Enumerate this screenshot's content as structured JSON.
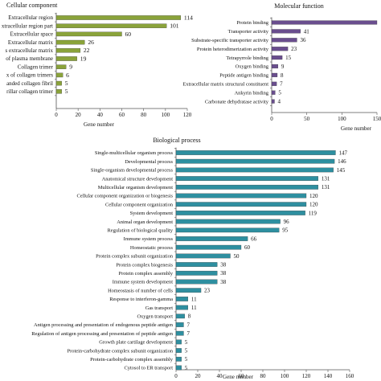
{
  "chart_data": [
    {
      "type": "bar",
      "orientation": "horizontal",
      "title": "Cellular component",
      "xlabel": "Gene number",
      "xlim": [
        0,
        120
      ],
      "xticks": [
        "0",
        "20",
        "40",
        "60",
        "80",
        "100",
        "120"
      ],
      "color": "#8aa33a",
      "categories": [
        "Extracellular region",
        "xtracellular region part",
        "Extracellular space",
        "Extracellular matrix",
        "s extracellular matrix",
        "of plasma membrane",
        "Collagen trimer",
        "x of collagen trimers",
        "anded collagen fibril",
        "rillar collagen trimer"
      ],
      "values": [
        114,
        101,
        60,
        26,
        22,
        19,
        9,
        6,
        5,
        5
      ]
    },
    {
      "type": "bar",
      "orientation": "horizontal",
      "title": "Molecular function",
      "xlabel": "Gene number",
      "xlim": [
        0,
        150
      ],
      "xticks": [
        "0",
        "50",
        "100",
        "150"
      ],
      "color": "#6a4e8e",
      "categories": [
        "Protein binding",
        "Transporter activity",
        "Substrate-specific transporter activity",
        "Protein heterodimerization activity",
        "Tetrapyrrole binding",
        "Oxygen binding",
        "Peptide antigen binding",
        "Extracellular matrix structural constituent",
        "Ankyrin binding",
        "Carbonate dehydratase activity"
      ],
      "values": [
        null,
        41,
        36,
        23,
        15,
        9,
        8,
        7,
        5,
        4
      ]
    },
    {
      "type": "bar",
      "orientation": "horizontal",
      "title": "Biological process",
      "xlabel": "Gene number",
      "xlim": [
        0,
        160
      ],
      "xticks": [
        "0",
        "20",
        "40",
        "60",
        "80",
        "100",
        "120",
        "140",
        "160"
      ],
      "color": "#2e8fa0",
      "categories": [
        "Single-multicellular organism process",
        "Developmental process",
        "Single-organism developmental process",
        "Anatomical structure development",
        "Multicellular organism development",
        "Cellular component organization or biogenesis",
        "Cellular component organization",
        "System development",
        "Animal organ development",
        "Regulation of biological quality",
        "Immune system process",
        "Homeostatic process",
        "Protein complex subunit organization",
        "Protein complex biogenesis",
        "Protein complex assembly",
        "Immune system development",
        "Homeostasis of number of cells",
        "Response to interferon-gamma",
        "Gas transport",
        "Oxygen transport",
        "Antigen processing and presentation of endogenous peptide antigen",
        "Regulation of antigen processing and presentation of peptide antigen",
        "Growth plate cartilage development",
        "Protein-carbohydrate complex subunit organization",
        "Protein-carbohydrate complex assembly",
        "Cytosol to ER transport"
      ],
      "values": [
        147,
        146,
        145,
        131,
        131,
        120,
        120,
        119,
        96,
        95,
        66,
        60,
        50,
        38,
        38,
        38,
        23,
        11,
        11,
        8,
        7,
        7,
        5,
        5,
        5,
        5
      ]
    }
  ]
}
